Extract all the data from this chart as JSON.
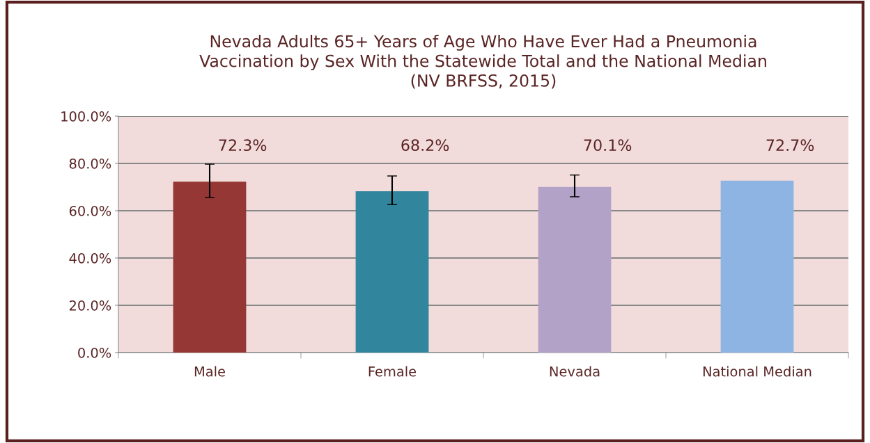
{
  "chart_data": {
    "type": "bar",
    "title": "Nevada Adults 65+ Years of Age Who Have Ever Had a Pneumonia\nVaccination by Sex With the Statewide Total and the National Median\n(NV BRFSS, 2015)",
    "categories": [
      "Male",
      "Female",
      "Nevada",
      "National Median"
    ],
    "values": [
      72.3,
      68.2,
      70.1,
      72.7
    ],
    "colors": [
      "#953735",
      "#31859c",
      "#b3a2c7",
      "#8eb4e3"
    ],
    "errors": [
      [
        65.6,
        79.7
      ],
      [
        62.6,
        74.7
      ],
      [
        65.9,
        75.1
      ],
      null
    ],
    "value_labels": [
      "72.3%",
      "68.2%",
      "70.1%",
      "72.7%"
    ],
    "ylim": [
      0,
      100
    ],
    "yticks": [
      {
        "value": 0,
        "label": "0.0%"
      },
      {
        "value": 20,
        "label": "20.0%"
      },
      {
        "value": 40,
        "label": "40.0%"
      },
      {
        "value": 60,
        "label": "60.0%"
      },
      {
        "value": 80,
        "label": "80.0%"
      },
      {
        "value": 100,
        "label": "100.0%"
      }
    ],
    "grid": "y",
    "legend": false
  }
}
